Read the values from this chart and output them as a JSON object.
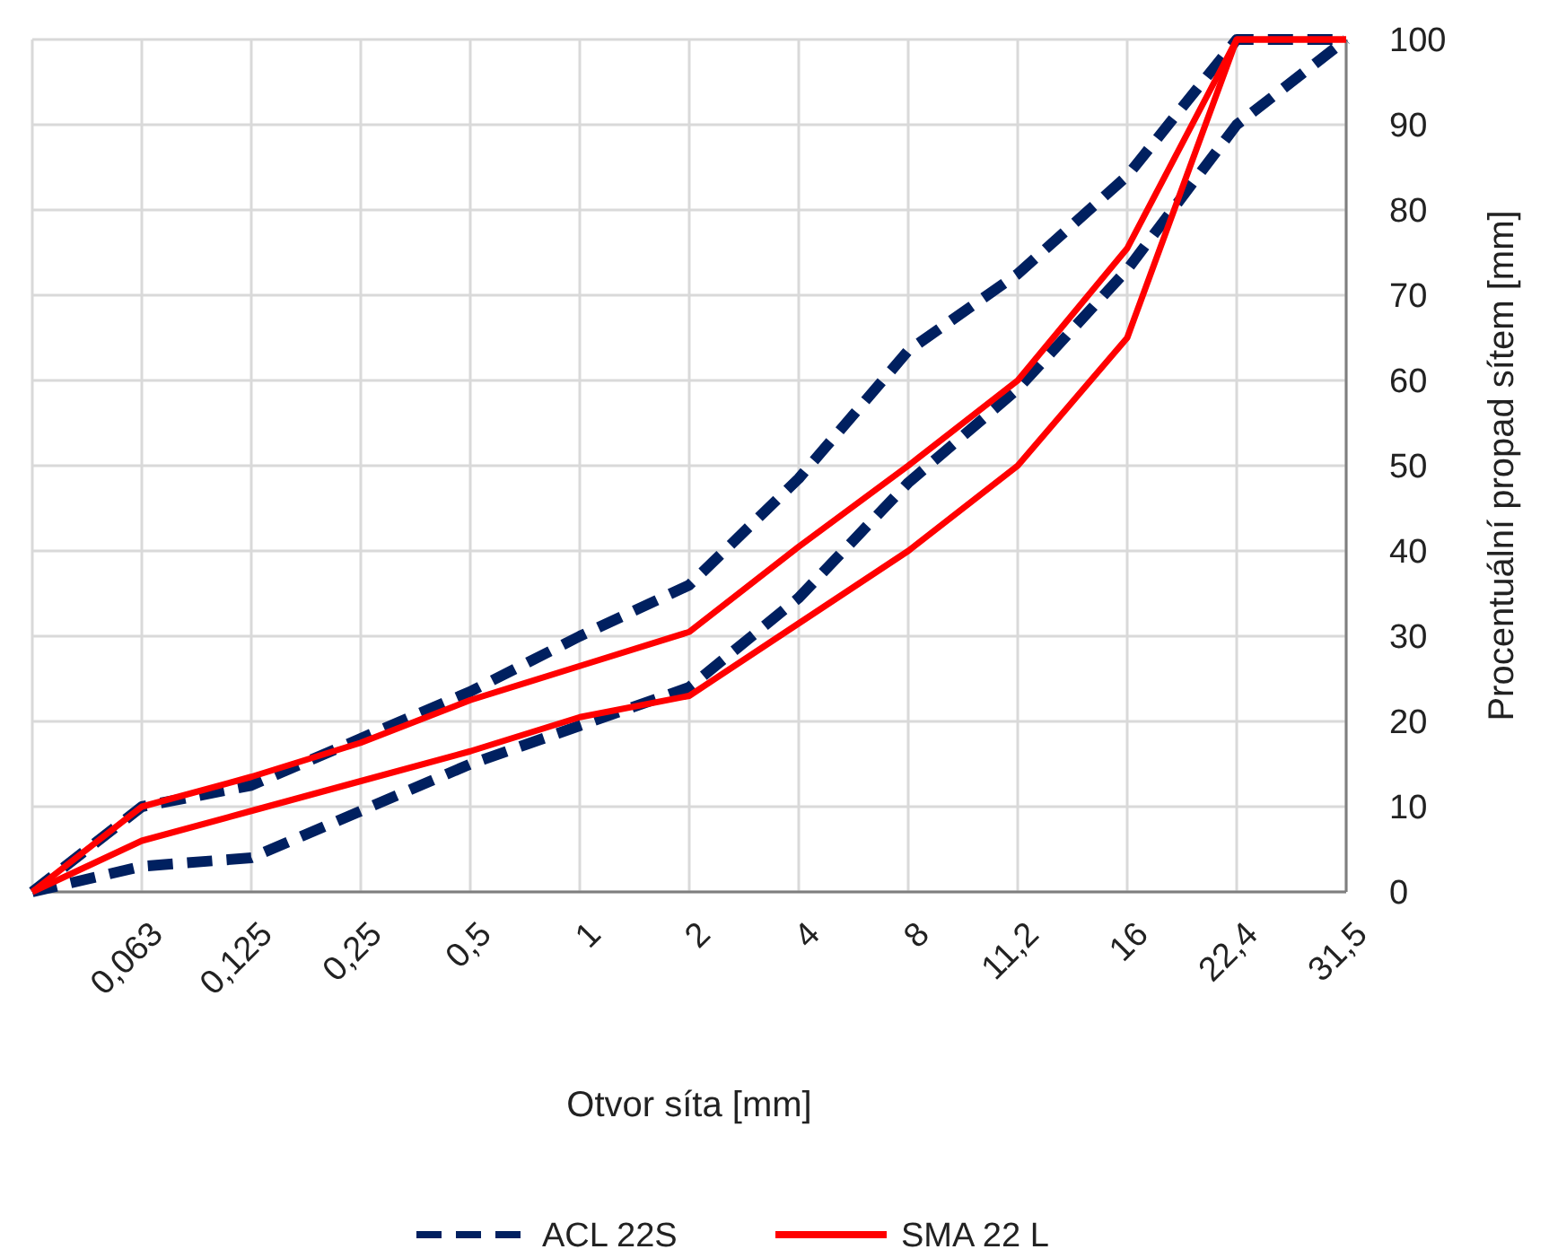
{
  "chart_data": {
    "type": "line",
    "xlabel": "Otvor síta [mm]",
    "ylabel": "Procentuální propad sítem [mm]",
    "categories": [
      null,
      "0,063",
      "0,125",
      "0,25",
      "0,5",
      "1",
      "2",
      "4",
      "8",
      "11,2",
      "16",
      "22,4",
      "31,5"
    ],
    "series": [
      {
        "name": "ACL 22S",
        "color": "#002060",
        "line_style": "dashed",
        "values": [
          0,
          10,
          12.5,
          18,
          23.5,
          30,
          36,
          48.5,
          63.5,
          72.5,
          84,
          100,
          100
        ]
      },
      {
        "color": "#002060",
        "line_style": "dashed",
        "values": [
          0,
          3,
          4,
          9.5,
          15,
          19.5,
          24,
          34.5,
          48,
          59,
          73,
          90,
          100
        ]
      },
      {
        "name": "SMA 22 L",
        "color": "#ff0000",
        "line_style": "solid",
        "values": [
          0,
          10,
          13.5,
          17.5,
          22.5,
          26.5,
          30.5,
          40.5,
          50,
          60,
          75.5,
          100,
          100
        ]
      },
      {
        "color": "#ff0000",
        "line_style": "solid",
        "values": [
          0,
          6,
          9.5,
          13,
          16.5,
          20.5,
          23,
          31.5,
          40,
          50,
          65,
          100,
          100
        ]
      }
    ],
    "ylim": [
      0,
      100
    ],
    "yticks": [
      0,
      10,
      20,
      30,
      40,
      50,
      60,
      70,
      80,
      90,
      100
    ],
    "grid": true,
    "legend": "bottom",
    "marker": "none"
  }
}
